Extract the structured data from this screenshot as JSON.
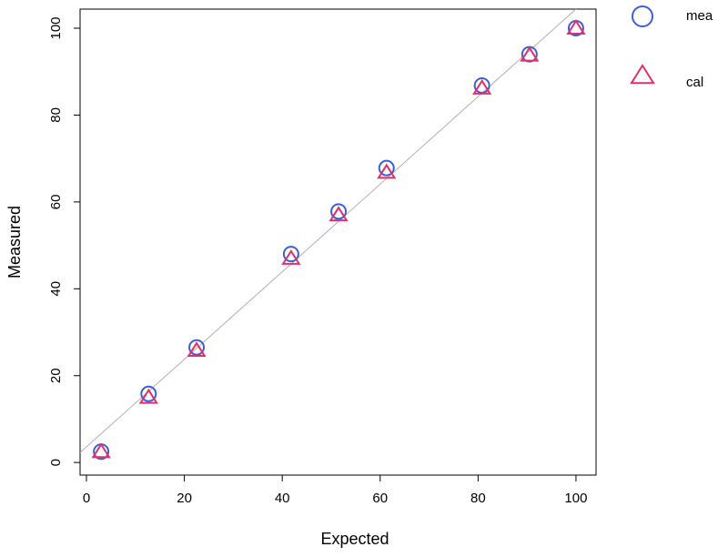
{
  "chart_data": {
    "type": "scatter",
    "x_label": "Expected",
    "y_label": "Measured",
    "xlim": [
      -1.3,
      104.1
    ],
    "ylim": [
      -2.9,
      104.4
    ],
    "xticks": [
      0,
      20,
      40,
      60,
      80,
      100
    ],
    "yticks": [
      0,
      20,
      40,
      60,
      80,
      100
    ],
    "reference_line": {
      "intercept": 3.6,
      "slope": 1.008,
      "color": "#b0b0b0"
    },
    "series": [
      {
        "name": "mea",
        "marker": "circle",
        "color": "#3a5fdc",
        "x": [
          3,
          12.7,
          22.5,
          41.8,
          51.5,
          61.3,
          80.8,
          90.5,
          100
        ],
        "values": [
          2.5,
          15.8,
          26.5,
          48,
          57.8,
          67.8,
          86.8,
          94,
          100
        ]
      },
      {
        "name": "cal",
        "marker": "triangle",
        "color": "#e0306a",
        "x": [
          3,
          12.7,
          22.5,
          41.8,
          51.5,
          61.3,
          80.8,
          90.5,
          100
        ],
        "values": [
          2.5,
          15,
          25.8,
          47,
          57,
          66.8,
          86.2,
          93.8,
          100
        ]
      }
    ]
  }
}
